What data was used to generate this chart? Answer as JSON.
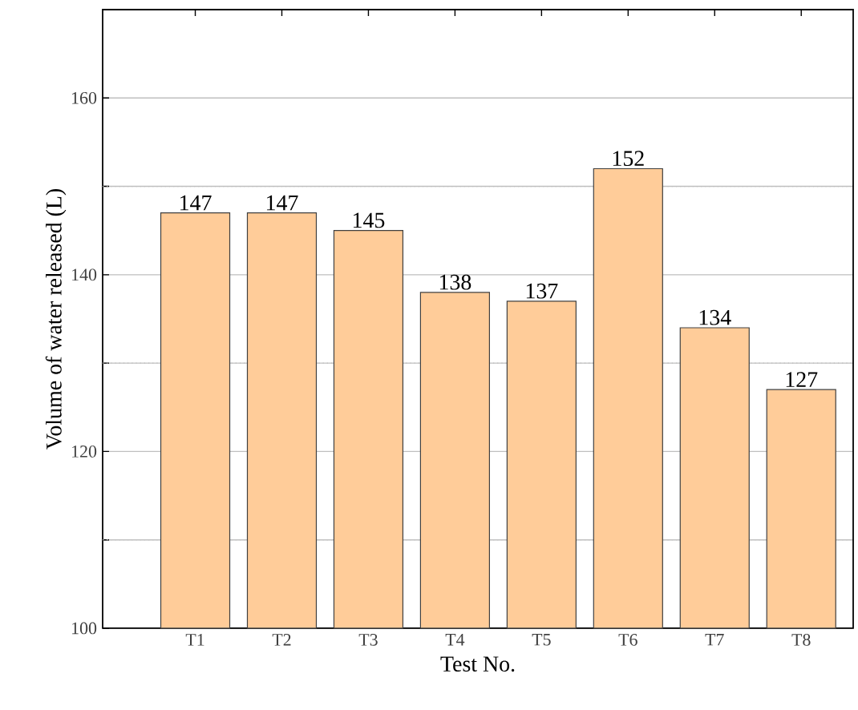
{
  "chart_data": {
    "type": "bar",
    "xlabel": "Test No.",
    "ylabel": "Volume of water released (L)",
    "categories": [
      "T1",
      "T2",
      "T3",
      "T4",
      "T5",
      "T6",
      "T7",
      "T8"
    ],
    "values": [
      147,
      147,
      145,
      138,
      137,
      152,
      134,
      127
    ],
    "color": "#ffcc99",
    "data_labels": true,
    "grid": "y",
    "ylim": [
      100,
      170
    ],
    "yticks": [
      100,
      {
        "value": 110,
        "label": null
      },
      120,
      {
        "value": 130,
        "label": null
      },
      140,
      {
        "value": 150,
        "label": null
      },
      160
    ]
  }
}
